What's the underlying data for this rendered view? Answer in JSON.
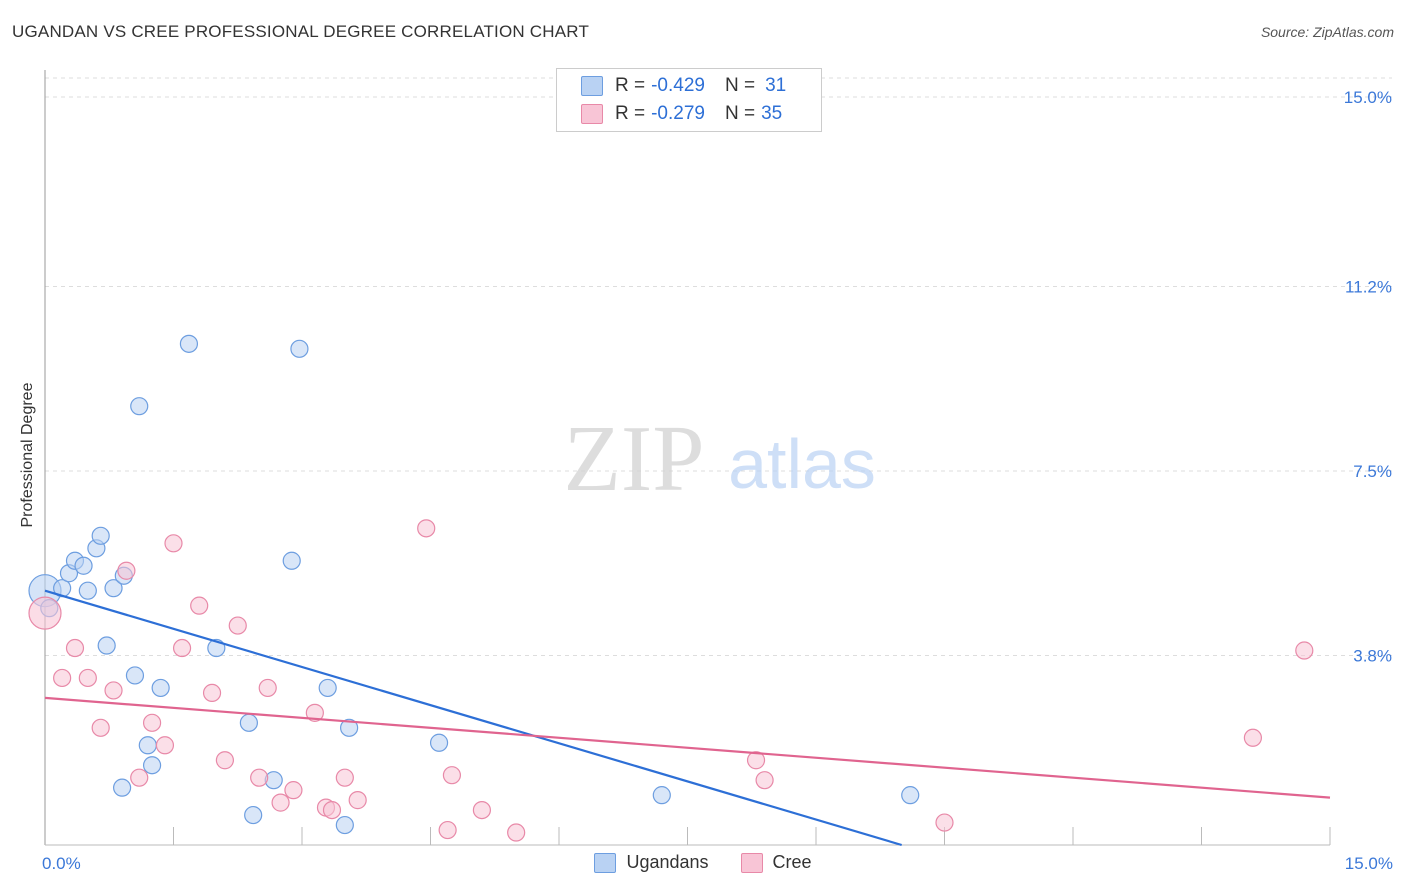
{
  "title": "UGANDAN VS CREE PROFESSIONAL DEGREE CORRELATION CHART",
  "source": "Source: ZipAtlas.com",
  "watermark": {
    "zip": "ZIP",
    "atlas": "atlas"
  },
  "colors": {
    "ugandan_fill": "#b9d2f3",
    "ugandan_stroke": "#6d9ee0",
    "ugandan_line": "#2d6fd6",
    "cree_fill": "#f8c5d6",
    "cree_stroke": "#e889a8",
    "cree_line": "#e0648f",
    "tick_label": "#3b78d8",
    "grid": "#dddddd"
  },
  "legend_top": [
    {
      "r_label": "R =",
      "r_value": "-0.429",
      "n_label": "N =",
      "n_value": "31"
    },
    {
      "r_label": "R =",
      "r_value": "-0.279",
      "n_label": "N =",
      "n_value": "35"
    }
  ],
  "legend_bottom": [
    "Ugandans",
    "Cree"
  ],
  "chart_data": {
    "type": "scatter",
    "title": "UGANDAN VS CREE PROFESSIONAL DEGREE CORRELATION CHART",
    "xlabel": "",
    "ylabel": "Professional Degree",
    "xlim": [
      0,
      15
    ],
    "ylim": [
      0,
      15.5
    ],
    "x_tick_labels": [
      {
        "value": 0,
        "label": "0.0%"
      },
      {
        "value": 15,
        "label": "15.0%"
      }
    ],
    "y_ticks": [
      {
        "value": 3.8,
        "label": "3.8%"
      },
      {
        "value": 7.5,
        "label": "7.5%"
      },
      {
        "value": 11.2,
        "label": "11.2%"
      },
      {
        "value": 15.0,
        "label": "15.0%"
      }
    ],
    "series": [
      {
        "name": "Ugandans",
        "r": -0.429,
        "n": 31,
        "points": [
          [
            0.0,
            5.1
          ],
          [
            0.05,
            4.75
          ],
          [
            0.2,
            5.15
          ],
          [
            0.28,
            5.45
          ],
          [
            0.35,
            5.7
          ],
          [
            0.45,
            5.6
          ],
          [
            0.5,
            5.1
          ],
          [
            0.6,
            5.95
          ],
          [
            0.65,
            6.2
          ],
          [
            0.72,
            4.0
          ],
          [
            0.8,
            5.15
          ],
          [
            0.92,
            5.4
          ],
          [
            0.9,
            1.15
          ],
          [
            1.05,
            3.4
          ],
          [
            1.1,
            8.8
          ],
          [
            1.2,
            2.0
          ],
          [
            1.25,
            1.6
          ],
          [
            1.35,
            3.15
          ],
          [
            1.68,
            10.05
          ],
          [
            2.0,
            3.95
          ],
          [
            2.38,
            2.45
          ],
          [
            2.43,
            0.6
          ],
          [
            2.67,
            1.3
          ],
          [
            2.88,
            5.7
          ],
          [
            2.97,
            9.95
          ],
          [
            3.3,
            3.15
          ],
          [
            3.5,
            0.4
          ],
          [
            3.55,
            2.35
          ],
          [
            4.6,
            2.05
          ],
          [
            7.2,
            1.0
          ],
          [
            10.1,
            1.0
          ]
        ],
        "trend": {
          "x0": 0,
          "y0": 5.1,
          "x1": 10.0,
          "y1": 0.0
        }
      },
      {
        "name": "Cree",
        "r": -0.279,
        "n": 35,
        "points": [
          [
            0.0,
            4.65
          ],
          [
            0.2,
            3.35
          ],
          [
            0.35,
            3.95
          ],
          [
            0.5,
            3.35
          ],
          [
            0.65,
            2.35
          ],
          [
            0.8,
            3.1
          ],
          [
            0.95,
            5.5
          ],
          [
            1.1,
            1.35
          ],
          [
            1.25,
            2.45
          ],
          [
            1.4,
            2.0
          ],
          [
            1.5,
            6.05
          ],
          [
            1.6,
            3.95
          ],
          [
            1.8,
            4.8
          ],
          [
            1.95,
            3.05
          ],
          [
            2.1,
            1.7
          ],
          [
            2.25,
            4.4
          ],
          [
            2.5,
            1.35
          ],
          [
            2.6,
            3.15
          ],
          [
            2.75,
            0.85
          ],
          [
            2.9,
            1.1
          ],
          [
            3.15,
            2.65
          ],
          [
            3.28,
            0.75
          ],
          [
            3.35,
            0.7
          ],
          [
            3.5,
            1.35
          ],
          [
            3.65,
            0.9
          ],
          [
            4.45,
            6.35
          ],
          [
            4.7,
            0.3
          ],
          [
            4.75,
            1.4
          ],
          [
            5.1,
            0.7
          ],
          [
            5.5,
            0.25
          ],
          [
            8.3,
            1.7
          ],
          [
            8.4,
            1.3
          ],
          [
            10.5,
            0.45
          ],
          [
            14.1,
            2.15
          ],
          [
            14.7,
            3.9
          ]
        ],
        "trend": {
          "x0": 0,
          "y0": 2.95,
          "x1": 15.0,
          "y1": 0.95
        }
      }
    ]
  }
}
